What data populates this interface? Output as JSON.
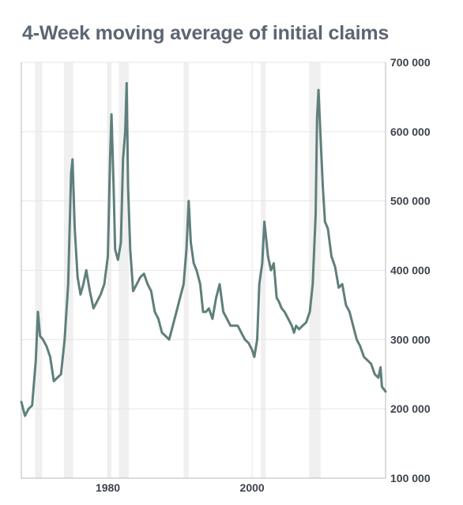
{
  "chart_data": {
    "type": "line",
    "title": "4-Week moving average of initial claims",
    "xlabel": "",
    "ylabel": "",
    "xlim": [
      1968.0,
      2018.5
    ],
    "ylim": [
      100000,
      700000
    ],
    "x_ticks": [
      1980,
      2000
    ],
    "x_tick_labels": [
      "1980",
      "2000"
    ],
    "y_ticks": [
      100000,
      200000,
      300000,
      400000,
      500000,
      600000,
      700000
    ],
    "y_tick_labels": [
      "100 000",
      "200 000",
      "300 000",
      "400 000",
      "500 000",
      "600 000",
      "700 000"
    ],
    "y_axis_position": "right",
    "grid": true,
    "recessions": [
      [
        1969.9,
        1970.9
      ],
      [
        1973.9,
        1975.2
      ],
      [
        1980.0,
        1980.5
      ],
      [
        1981.5,
        1982.9
      ],
      [
        1990.5,
        1991.2
      ],
      [
        2001.2,
        2001.9
      ],
      [
        2007.9,
        2009.5
      ]
    ],
    "series": [
      {
        "color": "#5f7f7b",
        "x": [
          1968.0,
          1968.5,
          1969.0,
          1969.5,
          1970.0,
          1970.3,
          1970.6,
          1971.0,
          1971.5,
          1972.0,
          1972.5,
          1973.0,
          1973.5,
          1974.0,
          1974.5,
          1974.9,
          1975.1,
          1975.4,
          1975.8,
          1976.2,
          1976.6,
          1977.0,
          1977.5,
          1978.0,
          1978.5,
          1979.0,
          1979.5,
          1980.0,
          1980.3,
          1980.5,
          1980.8,
          1981.0,
          1981.4,
          1981.8,
          1982.1,
          1982.4,
          1982.6,
          1982.8,
          1983.1,
          1983.5,
          1984.0,
          1984.5,
          1985.0,
          1985.5,
          1986.0,
          1986.5,
          1987.0,
          1987.5,
          1988.0,
          1988.5,
          1989.0,
          1989.5,
          1990.0,
          1990.5,
          1990.9,
          1991.2,
          1991.5,
          1991.9,
          1992.3,
          1992.8,
          1993.2,
          1993.6,
          1994.0,
          1994.5,
          1995.0,
          1995.5,
          1996.0,
          1996.5,
          1997.0,
          1997.5,
          1998.0,
          1998.5,
          1999.0,
          1999.5,
          2000.0,
          2000.3,
          2000.7,
          2001.0,
          2001.4,
          2001.7,
          2001.9,
          2002.2,
          2002.6,
          2003.0,
          2003.4,
          2003.7,
          2004.1,
          2004.5,
          2005.0,
          2005.5,
          2005.8,
          2006.1,
          2006.5,
          2007.0,
          2007.5,
          2008.0,
          2008.4,
          2008.8,
          2009.0,
          2009.2,
          2009.5,
          2009.8,
          2010.1,
          2010.5,
          2011.0,
          2011.5,
          2012.0,
          2012.5,
          2013.0,
          2013.5,
          2014.0,
          2014.5,
          2015.0,
          2015.5,
          2016.0,
          2016.5,
          2017.0,
          2017.5,
          2017.8,
          2018.0,
          2018.5
        ],
        "y": [
          210000,
          190000,
          200000,
          205000,
          270000,
          340000,
          305000,
          300000,
          290000,
          275000,
          240000,
          245000,
          250000,
          300000,
          380000,
          540000,
          560000,
          460000,
          390000,
          365000,
          380000,
          400000,
          370000,
          345000,
          355000,
          365000,
          380000,
          420000,
          560000,
          625000,
          520000,
          430000,
          415000,
          440000,
          560000,
          600000,
          670000,
          520000,
          430000,
          370000,
          380000,
          390000,
          395000,
          380000,
          370000,
          340000,
          330000,
          310000,
          305000,
          300000,
          320000,
          340000,
          360000,
          380000,
          430000,
          500000,
          440000,
          410000,
          400000,
          380000,
          340000,
          340000,
          345000,
          330000,
          360000,
          380000,
          340000,
          330000,
          320000,
          320000,
          320000,
          310000,
          300000,
          295000,
          285000,
          275000,
          300000,
          380000,
          410000,
          470000,
          450000,
          420000,
          400000,
          410000,
          360000,
          355000,
          345000,
          340000,
          330000,
          320000,
          310000,
          320000,
          315000,
          320000,
          325000,
          340000,
          380000,
          480000,
          620000,
          660000,
          590000,
          520000,
          470000,
          460000,
          420000,
          405000,
          375000,
          380000,
          350000,
          340000,
          320000,
          300000,
          290000,
          275000,
          270000,
          265000,
          250000,
          245000,
          260000,
          232000,
          225000
        ]
      }
    ]
  }
}
